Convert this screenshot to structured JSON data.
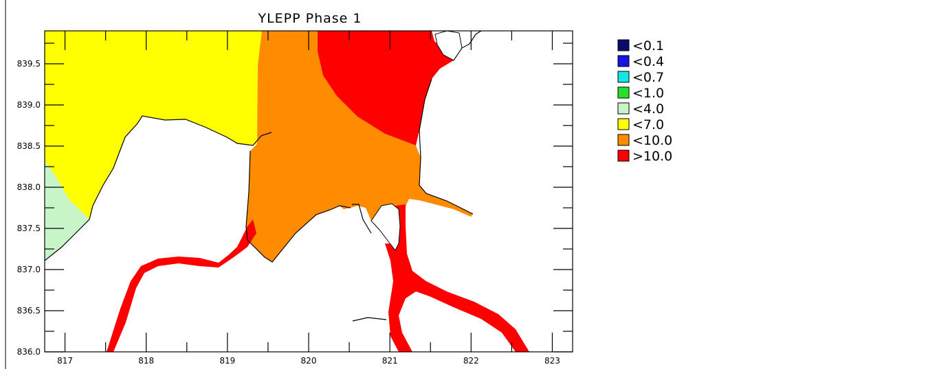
{
  "title": "YLEPP Phase 1",
  "x_axis": {
    "range": [
      816.75,
      823.25
    ],
    "ticks": [
      "817",
      "818",
      "819",
      "820",
      "821",
      "822",
      "823"
    ]
  },
  "y_axis": {
    "range": [
      836.0,
      839.9
    ],
    "ticks": [
      "836.0",
      "836.5",
      "837.0",
      "837.5",
      "838.0",
      "838.5",
      "839.0",
      "839.5"
    ]
  },
  "legend": [
    {
      "label": "<0.1",
      "color": "#0b0b6e"
    },
    {
      "label": "<0.4",
      "color": "#1515e6"
    },
    {
      "label": "<0.7",
      "color": "#14e6e6"
    },
    {
      "label": "<1.0",
      "color": "#2adf2a"
    },
    {
      "label": "<4.0",
      "color": "#c8f5c8"
    },
    {
      "label": "<7.0",
      "color": "#ffff00"
    },
    {
      "label": "<10.0",
      "color": "#ff8c00"
    },
    {
      "label": ">10.0",
      "color": "#ff0000"
    }
  ]
}
